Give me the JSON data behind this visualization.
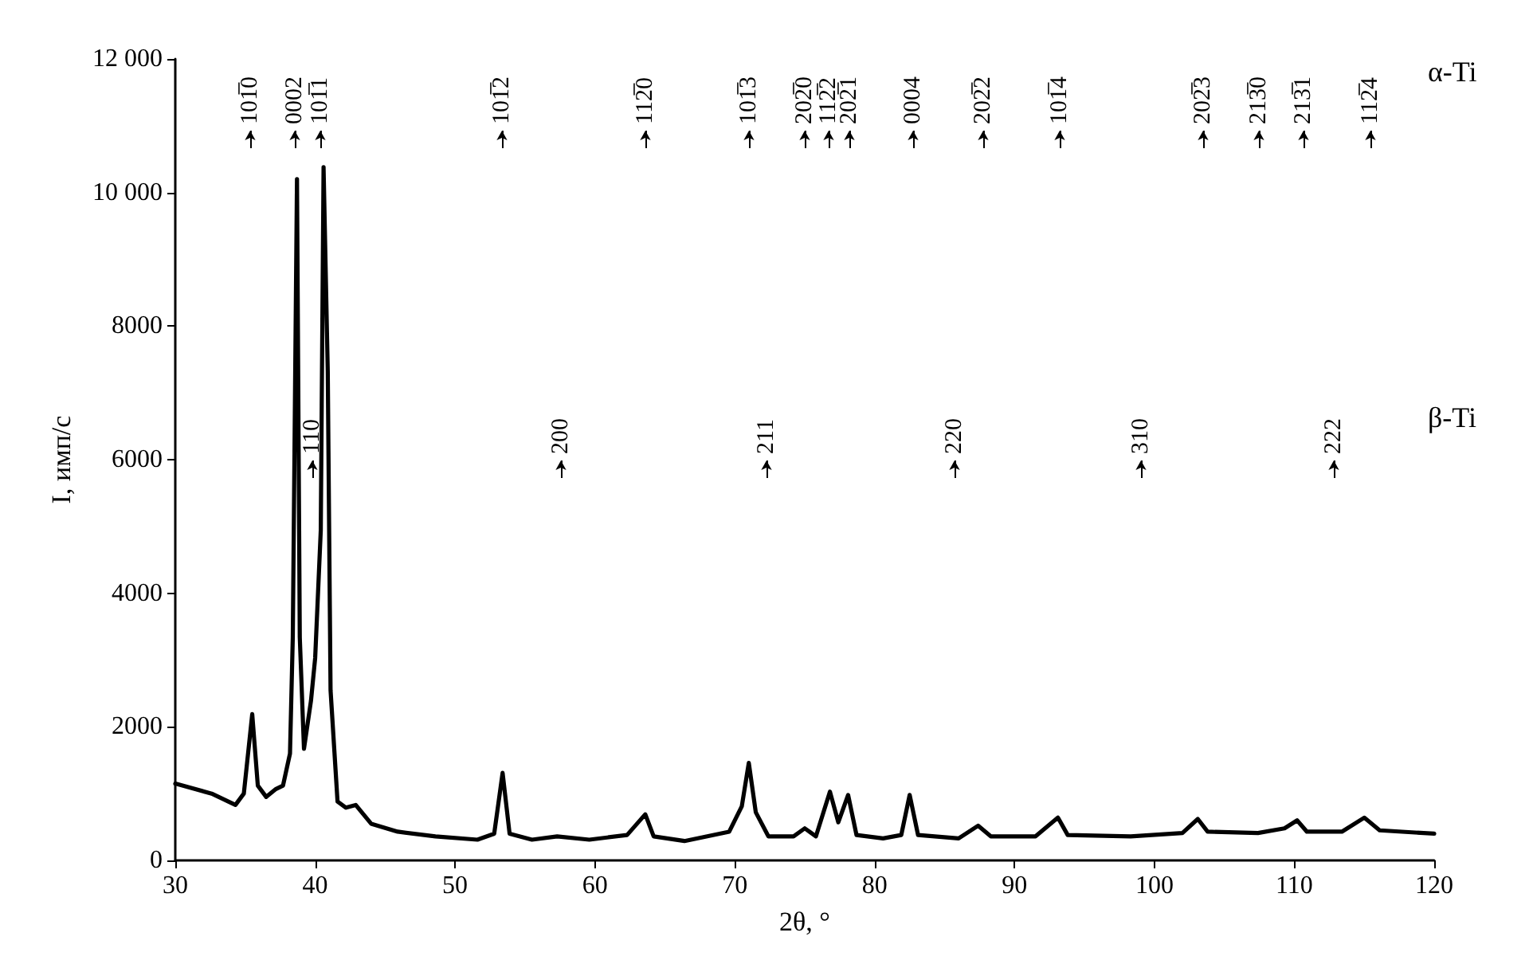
{
  "chart_data": {
    "type": "line",
    "xlabel": "2θ, °",
    "ylabel": "I, имп/с",
    "xlim": [
      30,
      120
    ],
    "xticks": [
      30,
      40,
      50,
      60,
      70,
      80,
      90,
      100,
      110,
      120
    ],
    "ylim": [
      0,
      12000
    ],
    "yticks": [
      0,
      2000,
      4000,
      6000,
      8000,
      {
        "value": 10000,
        "label": "10 000"
      },
      {
        "value": 12000,
        "label": "12 000"
      }
    ],
    "line_style": "solid",
    "series": [
      {
        "color": "#000000",
        "x": [
          30.0,
          32.6,
          34.3,
          34.9,
          35.5,
          35.9,
          36.5,
          37.2,
          37.7,
          38.2,
          38.4,
          38.7,
          38.9,
          39.2,
          39.7,
          40.0,
          40.4,
          40.6,
          40.9,
          41.1,
          41.6,
          42.2,
          42.9,
          44.0,
          45.9,
          48.6,
          51.6,
          52.8,
          53.4,
          53.9,
          55.5,
          57.3,
          59.6,
          62.3,
          63.6,
          64.2,
          66.4,
          69.6,
          70.5,
          71.0,
          71.5,
          72.4,
          74.2,
          75.0,
          75.8,
          76.8,
          77.4,
          78.1,
          78.7,
          80.6,
          81.9,
          82.5,
          83.1,
          86.0,
          87.4,
          88.3,
          91.5,
          93.1,
          93.8,
          98.3,
          102.0,
          103.1,
          103.8,
          107.4,
          109.3,
          110.2,
          110.9,
          113.4,
          115.0,
          116.1,
          120.0
        ],
        "values": [
          1150,
          1000,
          830,
          1000,
          2190,
          1120,
          950,
          1070,
          1120,
          1600,
          3340,
          10200,
          3340,
          1670,
          2390,
          3030,
          4940,
          10380,
          7330,
          2550,
          880,
          790,
          830,
          550,
          430,
          360,
          310,
          400,
          1310,
          400,
          310,
          360,
          310,
          380,
          690,
          360,
          290,
          430,
          810,
          1460,
          720,
          360,
          360,
          480,
          360,
          1030,
          570,
          980,
          380,
          330,
          380,
          980,
          380,
          330,
          520,
          360,
          360,
          640,
          380,
          360,
          410,
          620,
          430,
          410,
          480,
          600,
          430,
          430,
          640,
          450,
          400
        ]
      }
    ],
    "annotations": [
      "101̅0",
      "0002",
      "101̅1",
      "101̅2",
      "112̅0",
      "101̅3",
      "202̅0",
      "112̅2",
      "202̅1",
      "0004",
      "202̅2",
      "101̅4",
      "202̅3",
      "213̅0",
      "213̅1",
      "112̅4",
      "α-Ti",
      "110",
      "200",
      "211",
      "220",
      "310",
      "222",
      "β-Ti"
    ]
  }
}
